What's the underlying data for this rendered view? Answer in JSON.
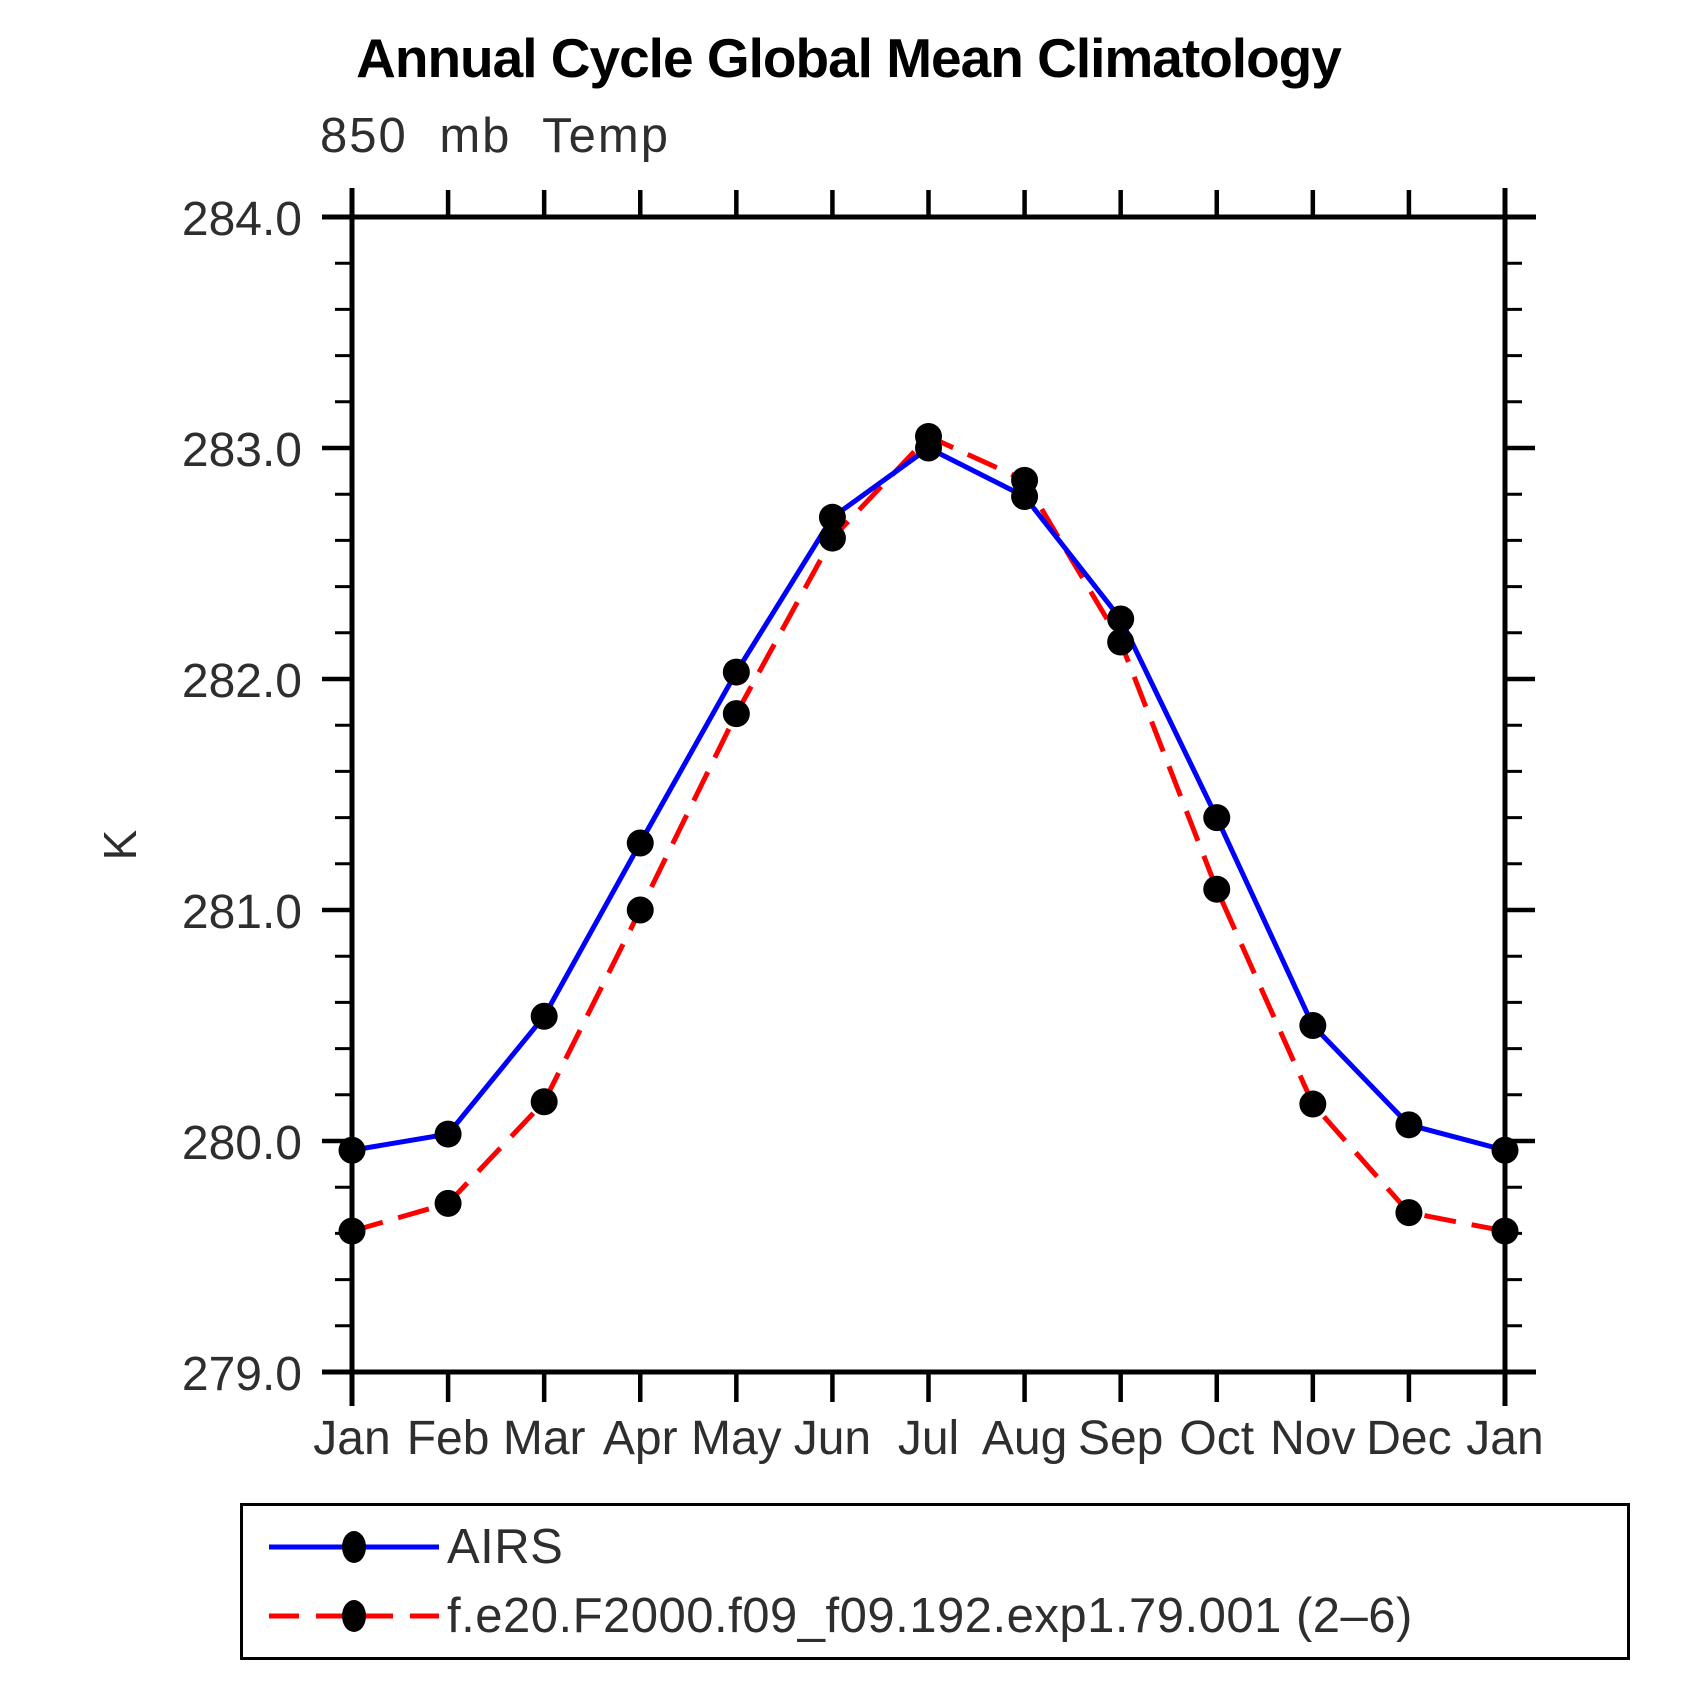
{
  "chart_data": {
    "type": "line",
    "title": "Annual Cycle Global Mean Climatology",
    "subtitle": "850 mb Temp",
    "xlabel": "",
    "ylabel": "K",
    "categories": [
      "Jan",
      "Feb",
      "Mar",
      "Apr",
      "May",
      "Jun",
      "Jul",
      "Aug",
      "Sep",
      "Oct",
      "Nov",
      "Dec",
      "Jan"
    ],
    "ylim": [
      279.0,
      284.0
    ],
    "ytick_step": 1.0,
    "yminor_step": 0.2,
    "ytick_labels": [
      "279.0",
      "280.0",
      "281.0",
      "282.0",
      "283.0",
      "284.0"
    ],
    "grid": false,
    "legend_position": "bottom",
    "axis_color": "#000000",
    "series": [
      {
        "name": "AIRS",
        "color": "#0000ff",
        "style": "solid",
        "marker": "filled-circle",
        "marker_color": "#000000",
        "values": [
          279.96,
          280.03,
          280.54,
          281.29,
          282.03,
          282.7,
          283.0,
          282.79,
          282.26,
          281.4,
          280.5,
          280.07,
          279.96
        ]
      },
      {
        "name": "f.e20.F2000.f09_f09.192.exp1.79.001 (2–6)",
        "color": "#ff0000",
        "style": "dashed",
        "marker": "filled-circle",
        "marker_color": "#000000",
        "values": [
          279.61,
          279.73,
          280.17,
          281.0,
          281.85,
          282.61,
          283.05,
          282.86,
          282.16,
          281.09,
          280.16,
          279.69,
          279.61
        ]
      }
    ]
  }
}
